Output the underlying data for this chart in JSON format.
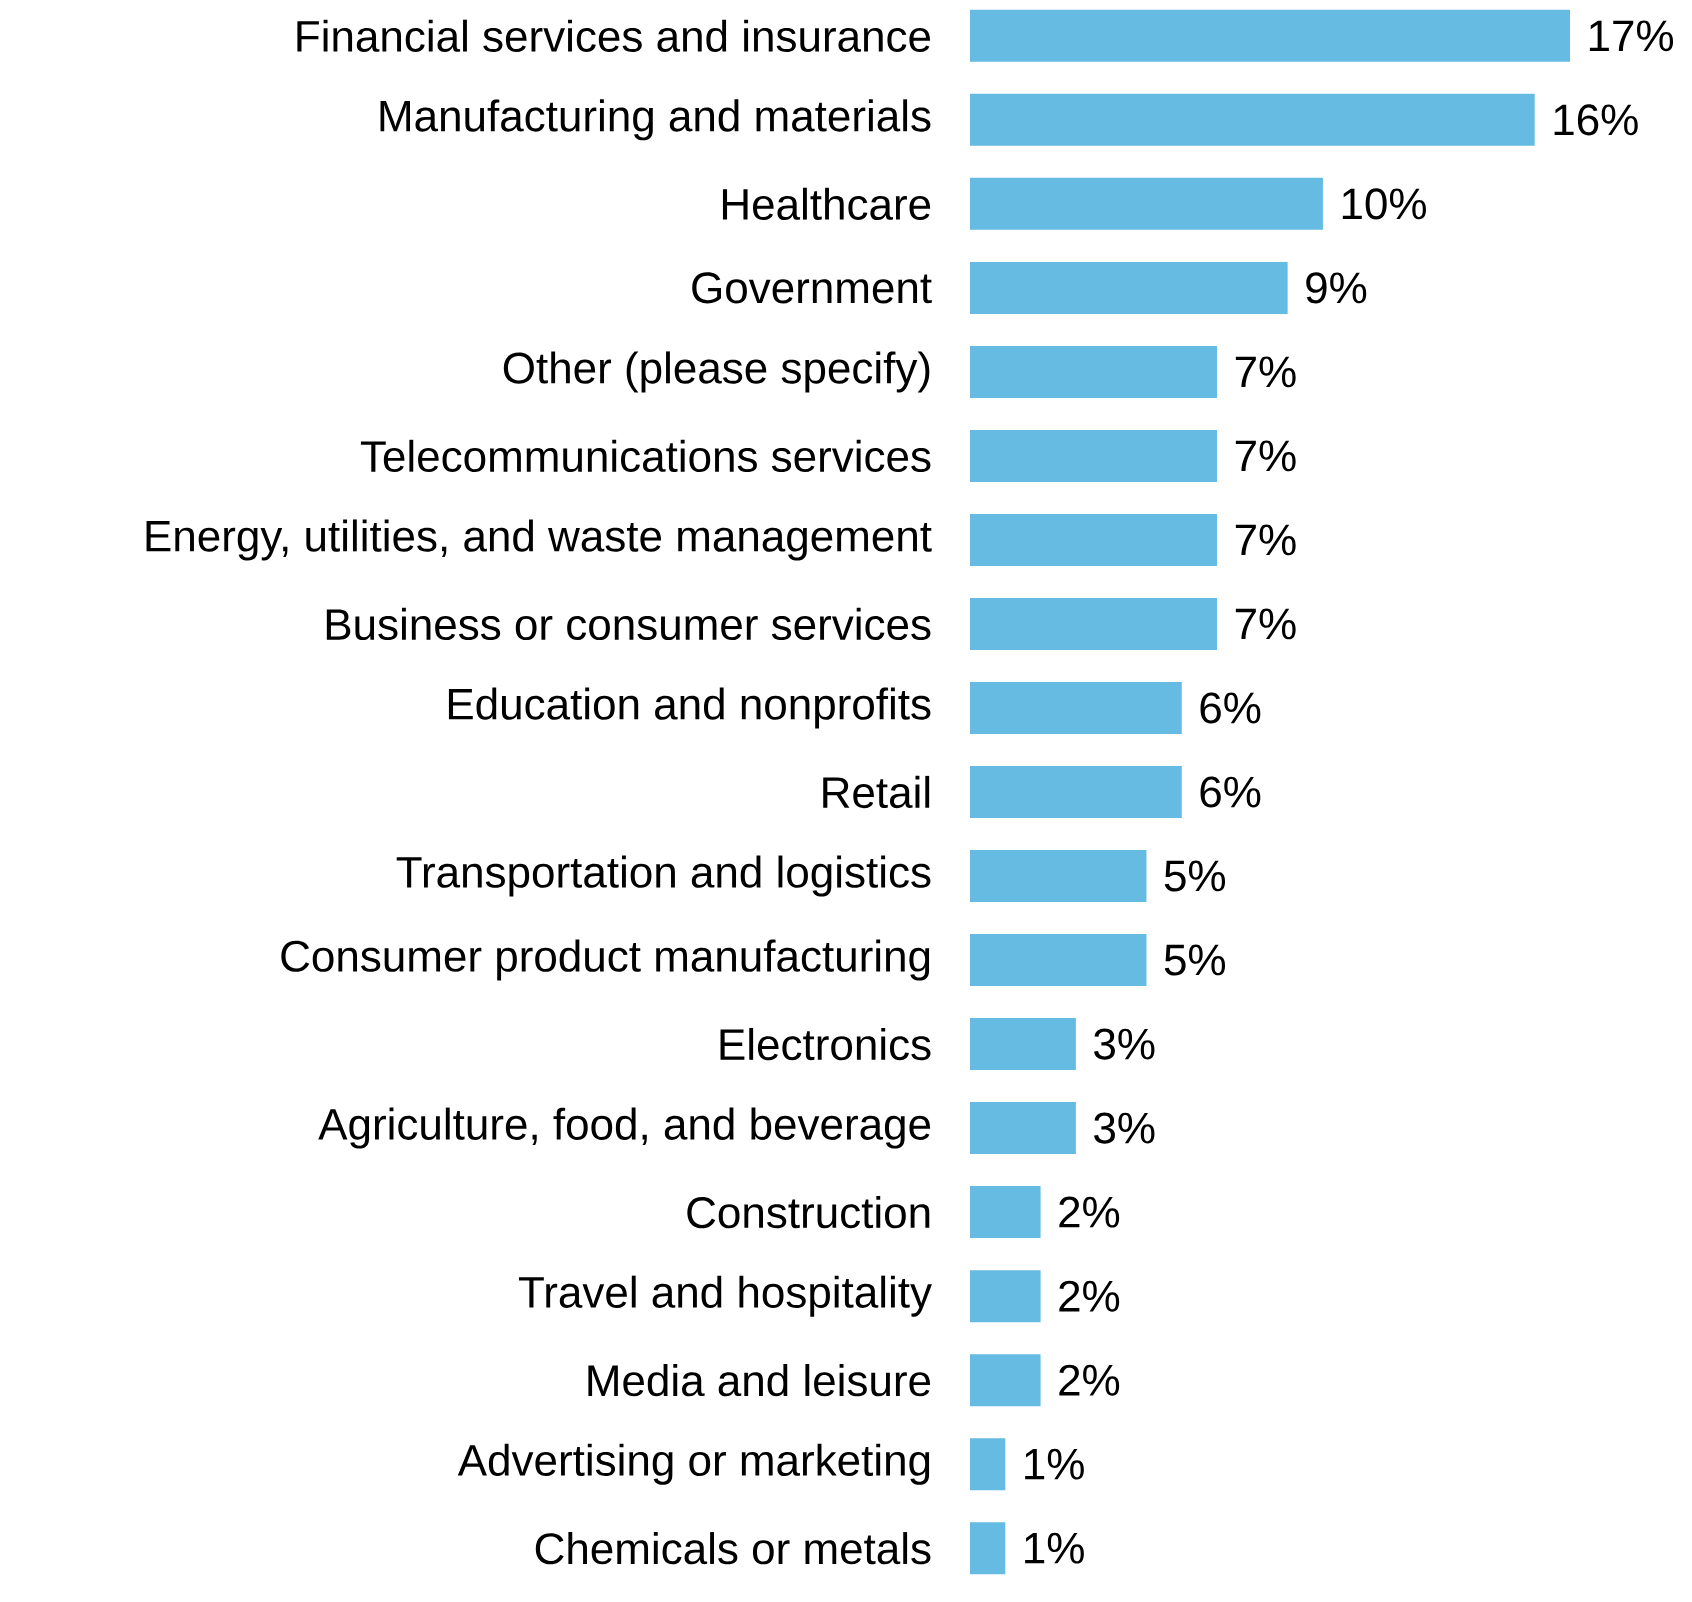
{
  "chart_data": {
    "type": "bar",
    "orientation": "horizontal",
    "color": "#66bbe3",
    "categories": [
      "Financial services and insurance",
      "Manufacturing and materials",
      "Healthcare",
      "Government",
      "Other (please specify)",
      "Telecommunications services",
      "Energy, utilities, and waste management",
      "Business or consumer services",
      "Education and nonprofits",
      "Retail",
      "Transportation and logistics",
      "Consumer product manufacturing",
      "Electronics",
      "Agriculture, food, and beverage",
      "Construction",
      "Travel and hospitality",
      "Media and leisure",
      "Advertising or marketing",
      "Chemicals or metals"
    ],
    "values": [
      17,
      16,
      10,
      9,
      7,
      7,
      7,
      7,
      6,
      6,
      5,
      5,
      3,
      3,
      2,
      2,
      2,
      1,
      1
    ],
    "value_labels": [
      "17%",
      "16%",
      "10%",
      "9%",
      "7%",
      "7%",
      "7%",
      "7%",
      "6%",
      "6%",
      "5%",
      "5%",
      "3%",
      "3%",
      "2%",
      "2%",
      "2%",
      "1%",
      "1%"
    ]
  }
}
